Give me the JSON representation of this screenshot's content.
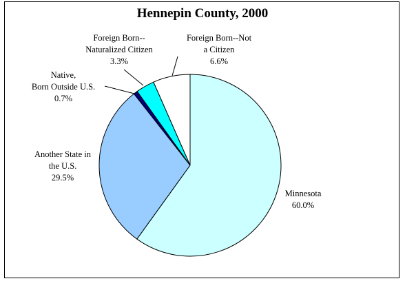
{
  "chart_data": {
    "type": "pie",
    "title": "Hennepin County, 2000",
    "slices": [
      {
        "label_lines": [
          "Minnesota"
        ],
        "value_label": "60.0%",
        "value": 60.0,
        "color": "#ccffff"
      },
      {
        "label_lines": [
          "Another State in",
          "the U.S."
        ],
        "value_label": "29.5%",
        "value": 29.5,
        "color": "#99ccff"
      },
      {
        "label_lines": [
          "Native,",
          "Born Outside U.S."
        ],
        "value_label": "0.7%",
        "value": 0.7,
        "color": "#000080"
      },
      {
        "label_lines": [
          "Foreign Born--",
          "Naturalized Citizen"
        ],
        "value_label": "3.3%",
        "value": 3.3,
        "color": "#00ffff"
      },
      {
        "label_lines": [
          "Foreign Born--Not",
          "a Citizen"
        ],
        "value_label": "6.6%",
        "value": 6.6,
        "color": "#ffffff"
      }
    ],
    "legend": "none"
  }
}
